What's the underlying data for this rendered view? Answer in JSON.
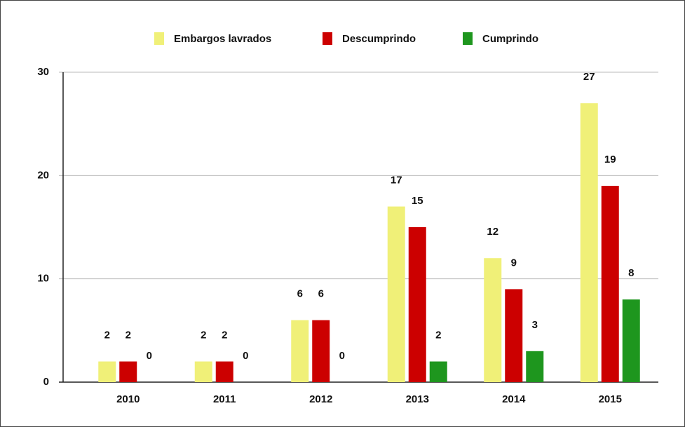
{
  "chart_data": {
    "type": "bar",
    "categories": [
      "2010",
      "2011",
      "2012",
      "2013",
      "2014",
      "2015"
    ],
    "series": [
      {
        "name": "Embargos lavrados",
        "color": "#f0f078",
        "values": [
          2,
          2,
          6,
          17,
          12,
          27
        ]
      },
      {
        "name": "Descumprindo",
        "color": "#cc0000",
        "values": [
          2,
          2,
          6,
          15,
          9,
          19
        ]
      },
      {
        "name": "Cumprindo",
        "color": "#1e961e",
        "values": [
          0,
          0,
          0,
          2,
          3,
          8
        ]
      }
    ],
    "ylim": [
      0,
      30
    ],
    "yticks": [
      0,
      10,
      20,
      30
    ],
    "grid": true,
    "legend": "top"
  }
}
